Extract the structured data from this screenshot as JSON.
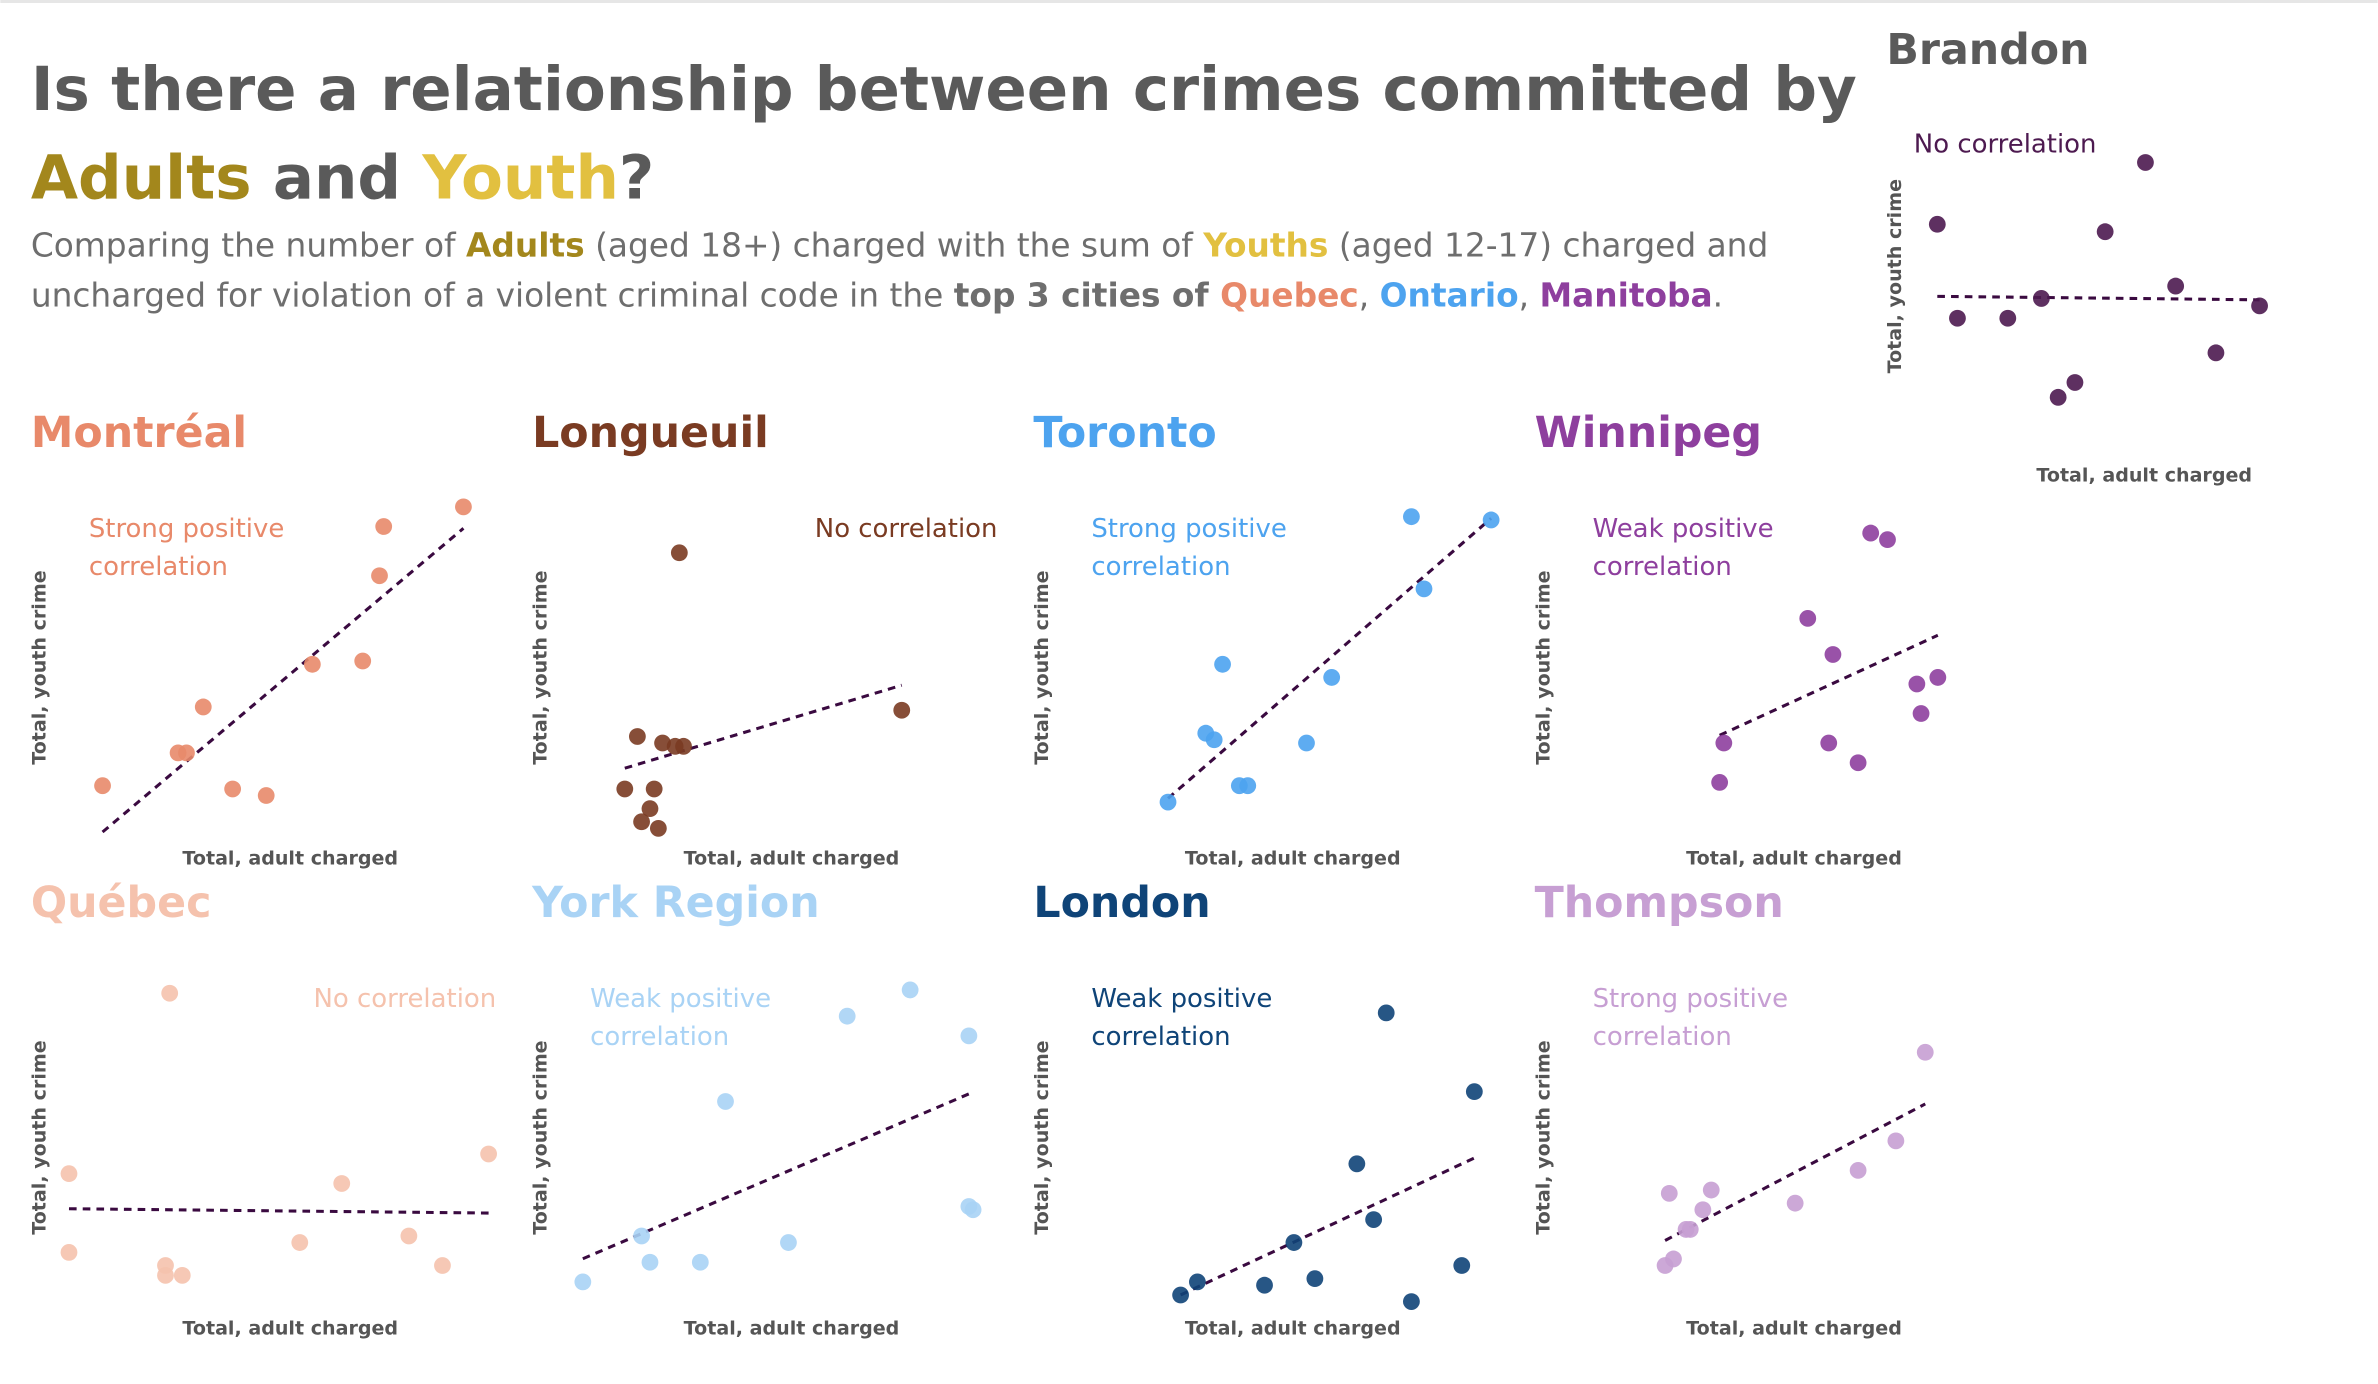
{
  "header": {
    "title": [
      [
        {
          "text": "Is there a relationship between crimes committed by",
          "color": "#5a5a5a"
        }
      ],
      [
        {
          "text": "Adults",
          "color": "#a3871c"
        },
        {
          "text": " and ",
          "color": "#5a5a5a"
        },
        {
          "text": "Youth",
          "color": "#e2c040"
        },
        {
          "text": "?",
          "color": "#5a5a5a"
        }
      ]
    ],
    "subtitle": [
      [
        {
          "text": "Comparing the number of ",
          "color": "#6e6e6e",
          "bold": false
        },
        {
          "text": "Adults",
          "color": "#a3871c",
          "bold": true
        },
        {
          "text": " (aged 18+) charged with the sum of ",
          "color": "#6e6e6e",
          "bold": false
        },
        {
          "text": "Youths",
          "color": "#e2c040",
          "bold": true
        },
        {
          "text": " (aged 12-17) charged and",
          "color": "#6e6e6e",
          "bold": false
        }
      ],
      [
        {
          "text": "uncharged for violation of a violent criminal code in the ",
          "color": "#6e6e6e",
          "bold": false
        },
        {
          "text": "top 3 cities of ",
          "color": "#6e6e6e",
          "bold": true
        },
        {
          "text": "Quebec",
          "color": "#e8896a",
          "bold": true
        },
        {
          "text": ", ",
          "color": "#6e6e6e",
          "bold": false
        },
        {
          "text": "Ontario",
          "color": "#4da3ef",
          "bold": true
        },
        {
          "text": ", ",
          "color": "#6e6e6e",
          "bold": false
        },
        {
          "text": "Manitoba",
          "color": "#8e3f9e",
          "bold": true
        },
        {
          "text": ".",
          "color": "#6e6e6e",
          "bold": false
        }
      ]
    ]
  },
  "chart_data": [
    {
      "type": "scatter",
      "title": "Montréal",
      "annotation": [
        "Strong positive",
        "correlation"
      ],
      "annotation_position": "top-left",
      "xlabel": "Total, adult charged",
      "ylabel": "Total, youth crime",
      "color": "#e8896a",
      "trendline": true,
      "xlim": [
        0,
        100
      ],
      "ylim": [
        0,
        100
      ],
      "x": [
        8,
        26,
        28,
        32,
        39,
        47,
        58,
        70,
        74,
        75,
        94
      ],
      "y": [
        14,
        24,
        24,
        38,
        13,
        11,
        51,
        52,
        78,
        93,
        99
      ]
    },
    {
      "type": "scatter",
      "title": "Longueuil",
      "annotation": [
        "No correlation"
      ],
      "annotation_position": "top-right",
      "xlabel": "Total, adult charged",
      "ylabel": "Total, youth crime",
      "color": "#7a3b22",
      "trendline": true,
      "xlim": [
        0,
        100
      ],
      "ylim": [
        0,
        100
      ],
      "x": [
        26,
        16,
        22,
        25,
        27,
        13,
        20,
        19,
        17,
        21,
        79
      ],
      "y": [
        85,
        29,
        27,
        26,
        26,
        13,
        13,
        7,
        3,
        1,
        37
      ]
    },
    {
      "type": "scatter",
      "title": "Toronto",
      "annotation": [
        "Strong positive",
        "correlation"
      ],
      "annotation_position": "top-left",
      "xlabel": "Total, adult charged",
      "ylabel": "Total, youth crime",
      "color": "#4da3ef",
      "trendline": true,
      "xlim": [
        0,
        100
      ],
      "ylim": [
        0,
        100
      ],
      "x": [
        23,
        32,
        34,
        40,
        42,
        36,
        56,
        62,
        84,
        81,
        100
      ],
      "y": [
        9,
        30,
        28,
        14,
        14,
        51,
        27,
        47,
        74,
        96,
        95
      ]
    },
    {
      "type": "scatter",
      "title": "Winnipeg",
      "annotation": [
        "Weak positive",
        "correlation"
      ],
      "annotation_position": "top-left",
      "xlabel": "Total, adult charged",
      "ylabel": "Total, youth crime",
      "color": "#8e3f9e",
      "trendline": true,
      "xlim": [
        0,
        100
      ],
      "ylim": [
        0,
        100
      ],
      "x": [
        71,
        75,
        56,
        62,
        87,
        82,
        83,
        36,
        61,
        68,
        35
      ],
      "y": [
        91,
        89,
        65,
        54,
        47,
        45,
        36,
        27,
        27,
        21,
        15
      ]
    },
    {
      "type": "scatter",
      "title": "Québec",
      "annotation": [
        "No correlation"
      ],
      "annotation_position": "top-right",
      "xlabel": "Total, adult charged",
      "ylabel": "Total, youth crime",
      "color": "#f5c2ad",
      "trendline": true,
      "xlim": [
        0,
        100
      ],
      "ylim": [
        0,
        100
      ],
      "x": [
        24,
        0,
        0,
        23,
        23,
        27,
        55,
        65,
        81,
        89,
        100
      ],
      "y": [
        94,
        39,
        15,
        11,
        8,
        8,
        18,
        36,
        20,
        11,
        45
      ]
    },
    {
      "type": "scatter",
      "title": "York Region",
      "annotation": [
        "Weak positive",
        "correlation"
      ],
      "annotation_position": "top-left",
      "xlabel": "Total, adult charged",
      "ylabel": "Total, youth crime",
      "color": "#a9d3f5",
      "trendline": true,
      "xlim": [
        0,
        100
      ],
      "ylim": [
        0,
        100
      ],
      "x": [
        3,
        17,
        19,
        31,
        52,
        37,
        66,
        81,
        95,
        95,
        96
      ],
      "y": [
        6,
        20,
        12,
        12,
        18,
        61,
        87,
        95,
        81,
        29,
        28
      ]
    },
    {
      "type": "scatter",
      "title": "London",
      "annotation": [
        "Weak positive",
        "correlation"
      ],
      "annotation_position": "top-left",
      "xlabel": "Total, adult charged",
      "ylabel": "Total, youth crime",
      "color": "#0f4478",
      "trendline": true,
      "xlim": [
        0,
        100
      ],
      "ylim": [
        0,
        100
      ],
      "x": [
        26,
        30,
        46,
        53,
        58,
        68,
        72,
        75,
        81,
        93,
        96
      ],
      "y": [
        2,
        6,
        5,
        18,
        7,
        42,
        25,
        88,
        0,
        11,
        64
      ]
    },
    {
      "type": "scatter",
      "title": "Thompson",
      "annotation": [
        "Strong positive",
        "correlation"
      ],
      "annotation_position": "top-left",
      "xlabel": "Total, adult charged",
      "ylabel": "Total, youth crime",
      "color": "#c79fd3",
      "trendline": true,
      "xlim": [
        0,
        100
      ],
      "ylim": [
        0,
        100
      ],
      "x": [
        22,
        24,
        27,
        28,
        23,
        31,
        33,
        53,
        68,
        77,
        84
      ],
      "y": [
        11,
        13,
        22,
        22,
        33,
        28,
        34,
        30,
        40,
        49,
        76
      ]
    },
    {
      "type": "scatter",
      "title": "Brandon",
      "annotation": [
        "No correlation"
      ],
      "annotation_position": "top-left",
      "xlabel": "Total, adult charged",
      "ylabel": "Total, youth crime",
      "color": "#4d1a50",
      "trendline": true,
      "xlim": [
        0,
        100
      ],
      "ylim": [
        0,
        100
      ],
      "x": [
        2,
        8,
        23,
        33,
        38,
        43,
        52,
        64,
        73,
        85,
        98
      ],
      "y": [
        71,
        33,
        33,
        41,
        1,
        7,
        68,
        96,
        46,
        19,
        38
      ]
    }
  ]
}
